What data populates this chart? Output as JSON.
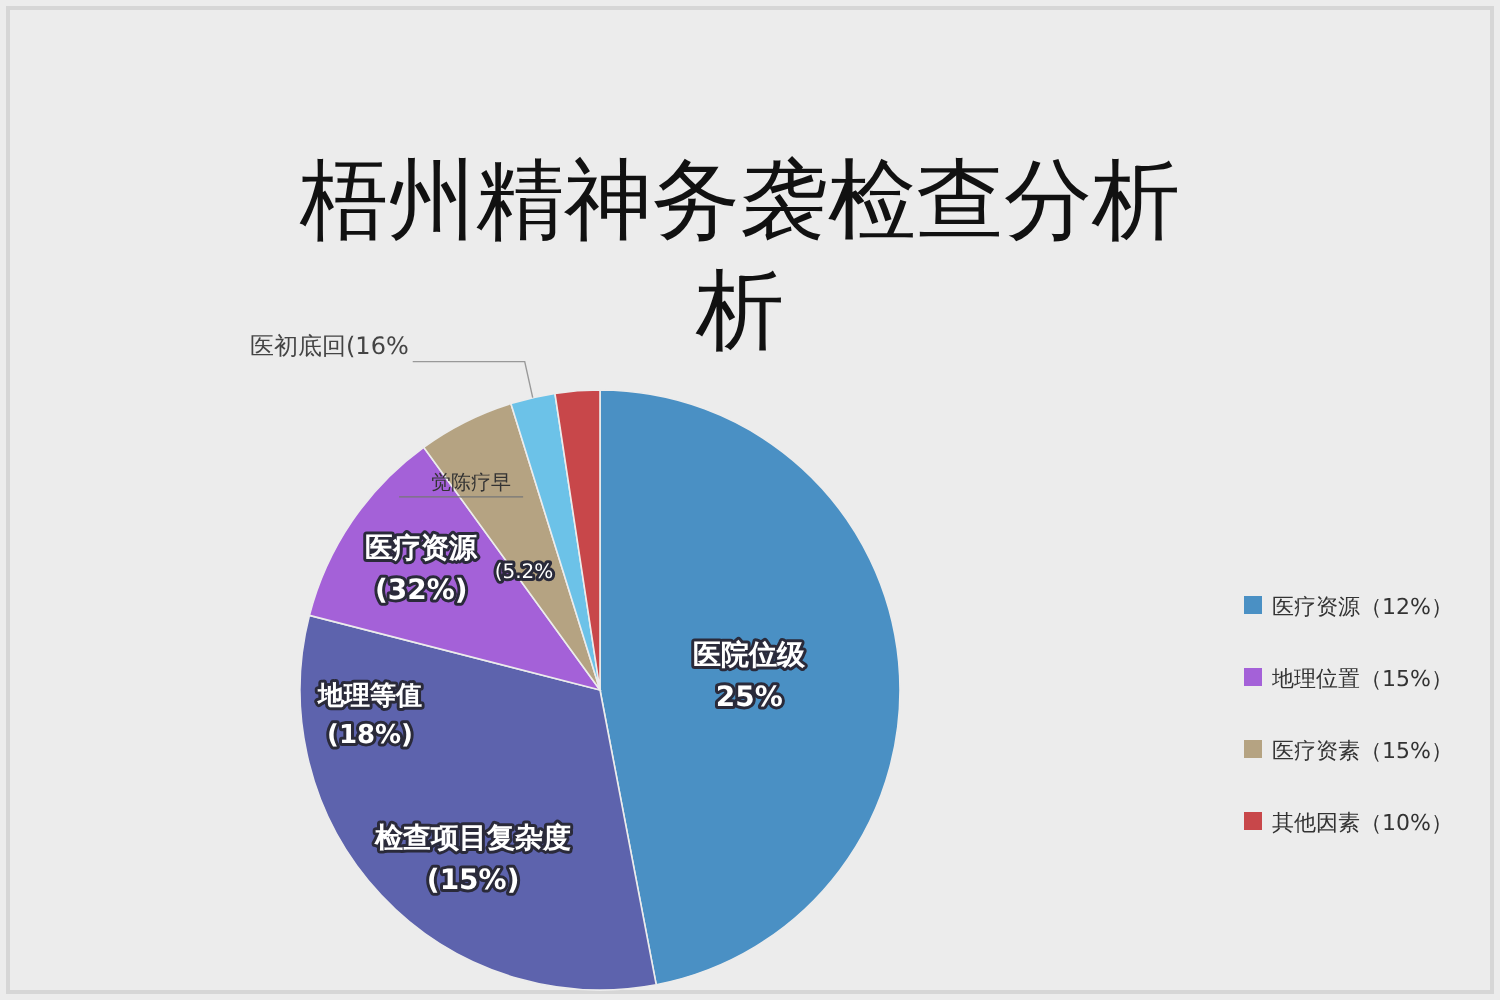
{
  "chart_data": {
    "type": "pie",
    "title": "梧州精神务袭检查分析析",
    "categories": [
      "医疗资源（12%）",
      null,
      "地理位置（15%）",
      "医疗资素（15%）",
      null,
      "其他因素（10%）"
    ],
    "values": [
      47,
      32,
      11,
      5.2,
      2.4,
      2.4
    ],
    "colors": [
      "#4a90c4",
      "#5d63ad",
      "#a461d8",
      "#b5a382",
      "#6cc2e8",
      "#c8474a"
    ],
    "annotations": [
      "医院位级\n25%",
      "检查项目复杂度\n(15%)",
      "医疗资源\n(32%)",
      "觉陈疗早",
      "医初底回(16%",
      "地理等值\n(18%)",
      "(5.2%"
    ],
    "legend": "right"
  }
}
